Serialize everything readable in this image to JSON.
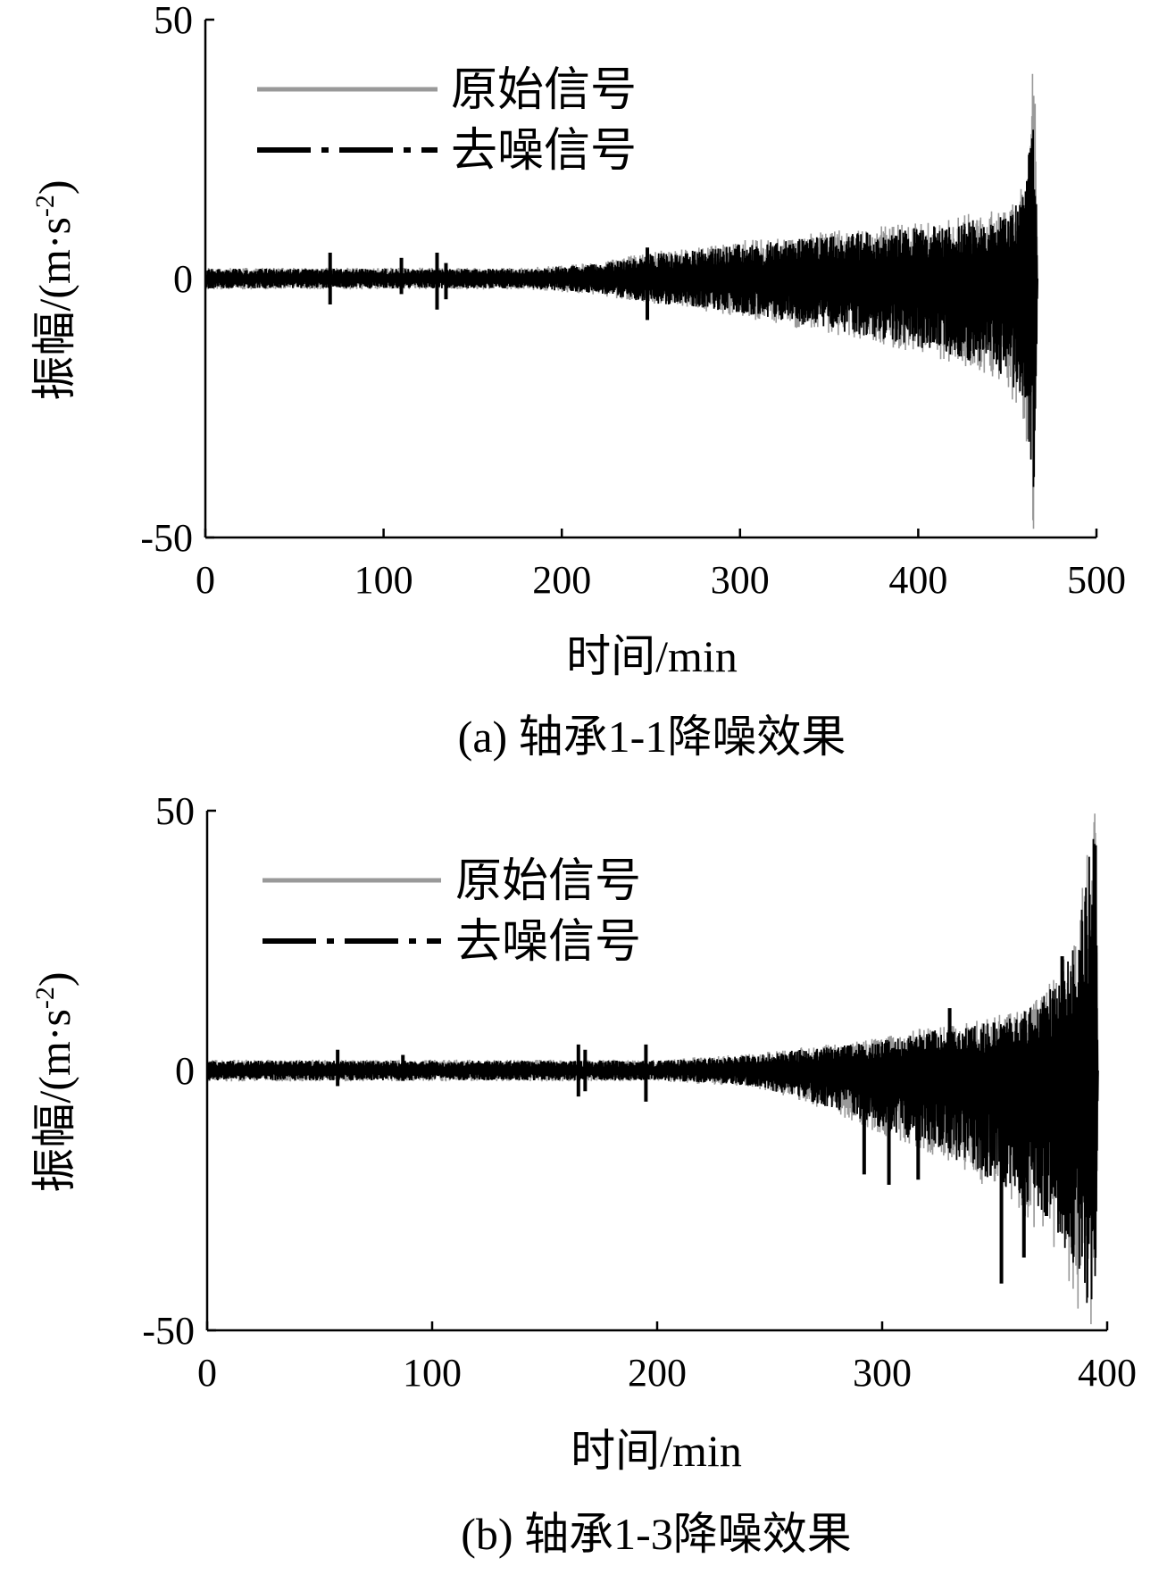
{
  "chart_data": [
    {
      "type": "line",
      "xlabel": "时间/min",
      "ylabel": "振幅/(m·s",
      "ylabel_sup": "-2",
      "ylabel_close": ")",
      "caption": "(a) 轴承1-1降噪效果",
      "xlim": [
        0,
        500
      ],
      "ylim": [
        -50,
        50
      ],
      "x_ticks": [
        0,
        100,
        200,
        300,
        400,
        500
      ],
      "y_ticks": [
        -50,
        0,
        50
      ],
      "legend_position": "top-left",
      "series": [
        {
          "name": "原始信号",
          "color": "#999999",
          "style": "solid"
        },
        {
          "name": "去噪信号",
          "color": "#000000",
          "style": "dash-dot"
        }
      ],
      "envelope": {
        "x": [
          0,
          60,
          120,
          180,
          220,
          250,
          280,
          300,
          330,
          360,
          390,
          410,
          430,
          450,
          460,
          463,
          465,
          467
        ],
        "upper": [
          2,
          2,
          2,
          2,
          3,
          5,
          6,
          7,
          8,
          9,
          10,
          11,
          12,
          13,
          18,
          30,
          45,
          0
        ],
        "lower": [
          -2,
          -2,
          -2,
          -2,
          -3,
          -5,
          -6,
          -7,
          -9,
          -11,
          -13,
          -15,
          -17,
          -20,
          -28,
          -38,
          -50,
          0
        ]
      },
      "spikes": [
        {
          "x": 70,
          "hi": 5,
          "lo": -5
        },
        {
          "x": 110,
          "hi": 4,
          "lo": -3
        },
        {
          "x": 130,
          "hi": 5,
          "lo": -6
        },
        {
          "x": 135,
          "hi": 3,
          "lo": -4
        },
        {
          "x": 248,
          "hi": 6,
          "lo": -8
        }
      ]
    },
    {
      "type": "line",
      "xlabel": "时间/min",
      "ylabel": "振幅/(m·s",
      "ylabel_sup": "-2",
      "ylabel_close": ")",
      "caption": "(b) 轴承1-3降噪效果",
      "xlim": [
        0,
        400
      ],
      "ylim": [
        -50,
        50
      ],
      "x_ticks": [
        0,
        100,
        200,
        300,
        400
      ],
      "y_ticks": [
        -50,
        0,
        50
      ],
      "legend_position": "top-left",
      "series": [
        {
          "name": "原始信号",
          "color": "#999999",
          "style": "solid"
        },
        {
          "name": "去噪信号",
          "color": "#000000",
          "style": "dash-dot"
        }
      ],
      "envelope": {
        "x": [
          0,
          100,
          200,
          240,
          260,
          280,
          300,
          320,
          340,
          360,
          370,
          380,
          388,
          392,
          395,
          396
        ],
        "upper": [
          2,
          2,
          2,
          3,
          4,
          5,
          6,
          8,
          9,
          11,
          14,
          20,
          30,
          45,
          50,
          0
        ],
        "lower": [
          -2,
          -2,
          -2,
          -3,
          -5,
          -8,
          -12,
          -15,
          -20,
          -25,
          -30,
          -35,
          -45,
          -50,
          -48,
          0
        ]
      },
      "spikes": [
        {
          "x": 58,
          "hi": 4,
          "lo": -3
        },
        {
          "x": 87,
          "hi": 3,
          "lo": -2
        },
        {
          "x": 165,
          "hi": 5,
          "lo": -5
        },
        {
          "x": 168,
          "hi": 4,
          "lo": -4
        },
        {
          "x": 195,
          "hi": 5,
          "lo": -6
        },
        {
          "x": 292,
          "hi": 2,
          "lo": -20
        },
        {
          "x": 303,
          "hi": 2,
          "lo": -22
        },
        {
          "x": 316,
          "hi": 3,
          "lo": -21
        },
        {
          "x": 330,
          "hi": 12,
          "lo": -15
        },
        {
          "x": 353,
          "hi": 8,
          "lo": -41
        },
        {
          "x": 363,
          "hi": 10,
          "lo": -36
        },
        {
          "x": 373,
          "hi": 12,
          "lo": -28
        },
        {
          "x": 380,
          "hi": 22,
          "lo": -26
        }
      ]
    }
  ]
}
